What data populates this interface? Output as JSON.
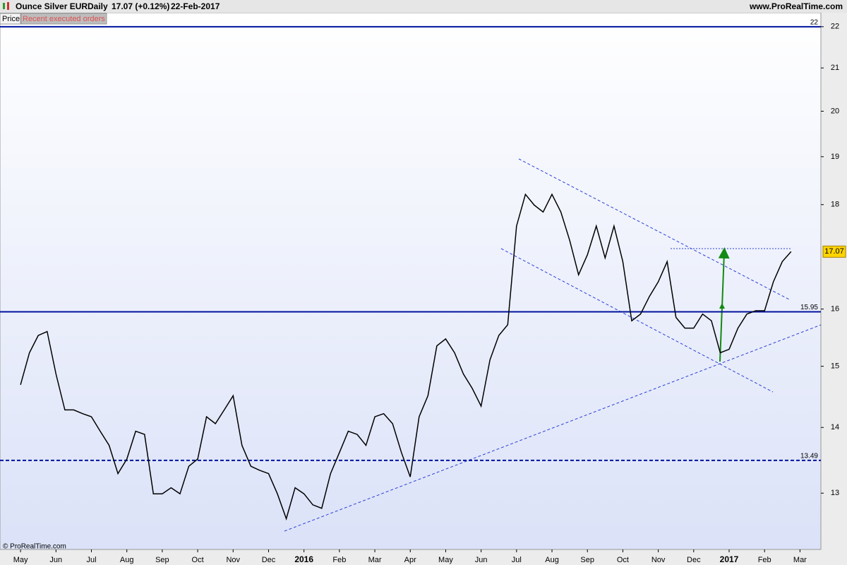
{
  "chart_data": {
    "type": "line",
    "title": "Ounce Silver EUR",
    "interval": "Daily",
    "last_change": "17.07 (+0.12%)",
    "date": "22-Feb-2017",
    "source": "www.ProRealTime.com",
    "copyright": "© ProRealTime.com",
    "tabs": [
      "Price",
      "Recent executed orders"
    ],
    "log_scale": true,
    "grid": false,
    "last_price": 17.07,
    "levels": [
      {
        "value": 22,
        "style": "solid",
        "color": "#00139e"
      },
      {
        "value": 15.95,
        "style": "solid",
        "color": "#00139e"
      },
      {
        "value": 13.49,
        "style": "dashed",
        "color": "#00139e"
      }
    ],
    "x": [
      0,
      0.25,
      0.5,
      0.75,
      1,
      1.25,
      1.5,
      1.75,
      2,
      2.25,
      2.5,
      2.75,
      3,
      3.25,
      3.5,
      3.75,
      4,
      4.25,
      4.5,
      4.75,
      5,
      5.25,
      5.5,
      5.75,
      6,
      6.25,
      6.5,
      6.75,
      7,
      7.25,
      7.5,
      7.75,
      8,
      8.25,
      8.5,
      8.75,
      9,
      9.25,
      9.5,
      9.75,
      10,
      10.25,
      10.5,
      10.75,
      11,
      11.25,
      11.5,
      11.75,
      12,
      12.25,
      12.5,
      12.75,
      13,
      13.25,
      13.5,
      13.75,
      14,
      14.25,
      14.5,
      14.75,
      15,
      15.25,
      15.5,
      15.75,
      16,
      16.25,
      16.5,
      16.75,
      17,
      17.25,
      17.5,
      17.75,
      18,
      18.25,
      18.5,
      18.75,
      19,
      19.25,
      19.5,
      19.75,
      20,
      20.25,
      20.5,
      20.75,
      21,
      21.25,
      21.5,
      21.75
    ],
    "series": [
      {
        "name": "Price",
        "color": "#000000",
        "values": [
          14.69,
          15.23,
          15.53,
          15.6,
          14.87,
          14.28,
          14.28,
          14.22,
          14.17,
          13.94,
          13.72,
          13.29,
          13.51,
          13.94,
          13.89,
          12.99,
          12.99,
          13.08,
          12.99,
          13.4,
          13.51,
          14.17,
          14.06,
          14.28,
          14.51,
          13.72,
          13.4,
          13.34,
          13.29,
          12.99,
          12.63,
          13.08,
          12.99,
          12.83,
          12.78,
          13.29,
          13.61,
          13.94,
          13.89,
          13.72,
          14.17,
          14.22,
          14.06,
          13.61,
          13.24,
          14.17,
          14.51,
          15.35,
          15.47,
          15.23,
          14.87,
          14.63,
          14.34,
          15.11,
          15.53,
          15.72,
          17.57,
          18.21,
          17.99,
          17.85,
          18.21,
          17.85,
          17.29,
          16.63,
          17.01,
          17.57,
          16.95,
          17.57,
          16.88,
          15.79,
          15.91,
          16.23,
          16.5,
          16.88,
          15.85,
          15.66,
          15.66,
          15.91,
          15.79,
          15.23,
          15.29,
          15.66,
          15.91,
          15.97,
          15.97,
          16.5,
          16.88,
          17.07
        ]
      }
    ],
    "xlim": [
      -0.58,
      22.59
    ],
    "ylim": [
      12.2,
      22.35
    ],
    "yticks": [
      13,
      14,
      15,
      16,
      18,
      19,
      20,
      21,
      22
    ],
    "xticks": [
      {
        "value": 0,
        "label": "May"
      },
      {
        "value": 1,
        "label": "Jun"
      },
      {
        "value": 2,
        "label": "Jul"
      },
      {
        "value": 3,
        "label": "Aug"
      },
      {
        "value": 4,
        "label": "Sep"
      },
      {
        "value": 5,
        "label": "Oct"
      },
      {
        "value": 6,
        "label": "Nov"
      },
      {
        "value": 7,
        "label": "Dec"
      },
      {
        "value": 8,
        "label": "2016"
      },
      {
        "value": 9,
        "label": "Feb"
      },
      {
        "value": 10,
        "label": "Mar"
      },
      {
        "value": 11,
        "label": "Apr"
      },
      {
        "value": 12,
        "label": "May"
      },
      {
        "value": 13,
        "label": "Jun"
      },
      {
        "value": 14,
        "label": "Jul"
      },
      {
        "value": 15,
        "label": "Aug"
      },
      {
        "value": 16,
        "label": "Sep"
      },
      {
        "value": 17,
        "label": "Oct"
      },
      {
        "value": 18,
        "label": "Nov"
      },
      {
        "value": 19,
        "label": "Dec"
      },
      {
        "value": 20,
        "label": "2017"
      },
      {
        "value": 21,
        "label": "Feb"
      },
      {
        "value": 22,
        "label": "Mar"
      }
    ]
  }
}
